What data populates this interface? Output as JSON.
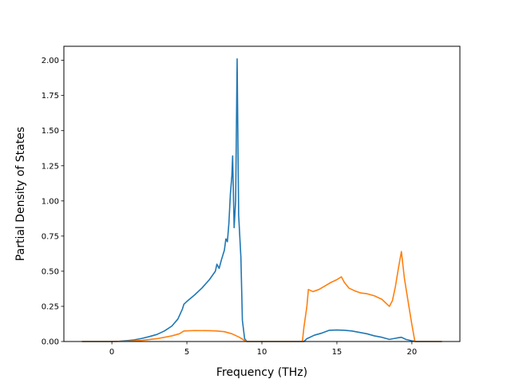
{
  "chart_data": {
    "type": "line",
    "title": "",
    "xlabel": "Frequency (THz)",
    "ylabel": "Partial Density of States",
    "xlim": [
      -3.2,
      23.2
    ],
    "ylim": [
      0,
      2.1
    ],
    "xticks": [
      0,
      5,
      10,
      15,
      20
    ],
    "xtick_labels": [
      "0",
      "5",
      "10",
      "15",
      "20"
    ],
    "yticks": [
      0,
      0.25,
      0.5,
      0.75,
      1.0,
      1.25,
      1.5,
      1.75,
      2.0
    ],
    "ytick_labels": [
      "0.00",
      "0.25",
      "0.50",
      "0.75",
      "1.00",
      "1.25",
      "1.50",
      "1.75",
      "2.00"
    ],
    "grid": false,
    "legend": "none",
    "series": [
      {
        "color": "#1f77b4",
        "points": [
          [
            -2.0,
            0
          ],
          [
            -1.0,
            0
          ],
          [
            0,
            0
          ],
          [
            0.5,
            0.002
          ],
          [
            1.0,
            0.006
          ],
          [
            1.5,
            0.012
          ],
          [
            2.0,
            0.022
          ],
          [
            2.5,
            0.035
          ],
          [
            3.0,
            0.05
          ],
          [
            3.5,
            0.075
          ],
          [
            4.0,
            0.11
          ],
          [
            4.4,
            0.16
          ],
          [
            4.7,
            0.23
          ],
          [
            4.8,
            0.265
          ],
          [
            5.0,
            0.285
          ],
          [
            5.5,
            0.33
          ],
          [
            6.0,
            0.38
          ],
          [
            6.5,
            0.44
          ],
          [
            6.9,
            0.5
          ],
          [
            7.0,
            0.55
          ],
          [
            7.15,
            0.52
          ],
          [
            7.3,
            0.58
          ],
          [
            7.5,
            0.65
          ],
          [
            7.6,
            0.73
          ],
          [
            7.7,
            0.71
          ],
          [
            7.8,
            0.84
          ],
          [
            7.9,
            1.05
          ],
          [
            8.0,
            1.18
          ],
          [
            8.05,
            1.32
          ],
          [
            8.15,
            0.81
          ],
          [
            8.25,
            1.0
          ],
          [
            8.35,
            2.01
          ],
          [
            8.45,
            0.9
          ],
          [
            8.6,
            0.6
          ],
          [
            8.7,
            0.15
          ],
          [
            8.85,
            0.02
          ],
          [
            9.0,
            0
          ],
          [
            10.0,
            0
          ],
          [
            11.0,
            0
          ],
          [
            12.0,
            0
          ],
          [
            12.8,
            0
          ],
          [
            13.0,
            0.02
          ],
          [
            13.5,
            0.045
          ],
          [
            14.0,
            0.06
          ],
          [
            14.5,
            0.08
          ],
          [
            15.0,
            0.082
          ],
          [
            15.5,
            0.08
          ],
          [
            16.0,
            0.075
          ],
          [
            16.5,
            0.065
          ],
          [
            17.0,
            0.055
          ],
          [
            17.5,
            0.04
          ],
          [
            18.0,
            0.03
          ],
          [
            18.5,
            0.015
          ],
          [
            19.0,
            0.025
          ],
          [
            19.3,
            0.03
          ],
          [
            19.6,
            0.015
          ],
          [
            20.0,
            0.005
          ],
          [
            20.3,
            0
          ],
          [
            21.0,
            0
          ],
          [
            22.0,
            0
          ]
        ]
      },
      {
        "color": "#ff7f0e",
        "points": [
          [
            -2.0,
            0
          ],
          [
            -1.0,
            0
          ],
          [
            0,
            0
          ],
          [
            1.0,
            0.002
          ],
          [
            2.0,
            0.008
          ],
          [
            3.0,
            0.02
          ],
          [
            4.0,
            0.04
          ],
          [
            4.5,
            0.055
          ],
          [
            4.8,
            0.075
          ],
          [
            5.5,
            0.078
          ],
          [
            6.5,
            0.077
          ],
          [
            7.0,
            0.075
          ],
          [
            7.5,
            0.07
          ],
          [
            8.0,
            0.055
          ],
          [
            8.5,
            0.03
          ],
          [
            8.8,
            0.01
          ],
          [
            9.0,
            0
          ],
          [
            10.0,
            0
          ],
          [
            11.0,
            0
          ],
          [
            12.0,
            0
          ],
          [
            12.7,
            0
          ],
          [
            12.8,
            0.1
          ],
          [
            13.0,
            0.25
          ],
          [
            13.1,
            0.37
          ],
          [
            13.4,
            0.355
          ],
          [
            13.8,
            0.37
          ],
          [
            14.2,
            0.395
          ],
          [
            14.6,
            0.42
          ],
          [
            15.0,
            0.44
          ],
          [
            15.3,
            0.46
          ],
          [
            15.5,
            0.42
          ],
          [
            15.8,
            0.38
          ],
          [
            16.2,
            0.36
          ],
          [
            16.6,
            0.345
          ],
          [
            17.0,
            0.34
          ],
          [
            17.5,
            0.325
          ],
          [
            18.0,
            0.3
          ],
          [
            18.3,
            0.27
          ],
          [
            18.5,
            0.25
          ],
          [
            18.7,
            0.29
          ],
          [
            18.9,
            0.39
          ],
          [
            19.1,
            0.52
          ],
          [
            19.3,
            0.64
          ],
          [
            19.5,
            0.45
          ],
          [
            19.8,
            0.25
          ],
          [
            20.0,
            0.12
          ],
          [
            20.2,
            0
          ],
          [
            21.0,
            0
          ],
          [
            22.0,
            0
          ]
        ]
      }
    ]
  }
}
